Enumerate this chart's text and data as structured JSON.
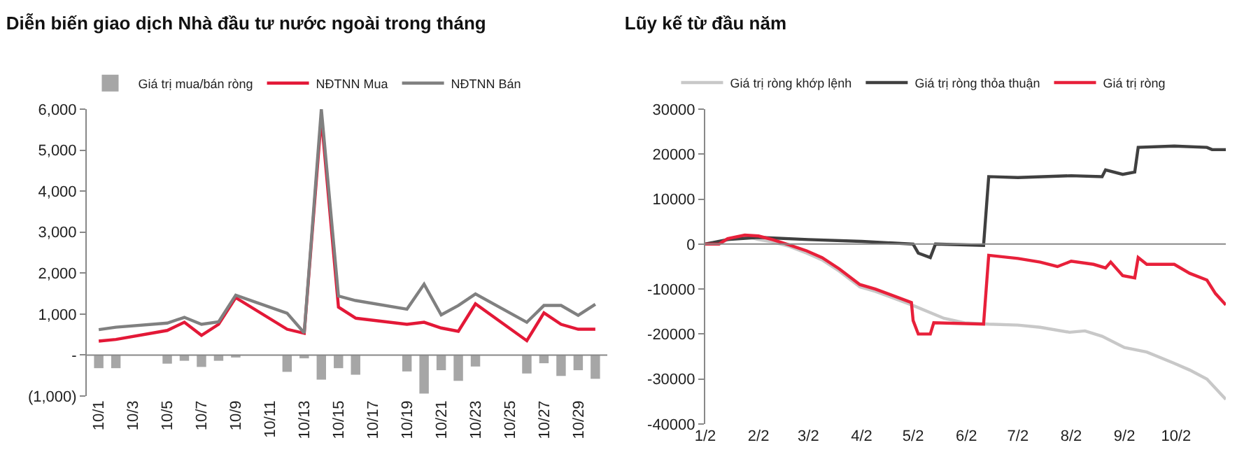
{
  "chart_data": [
    {
      "type": "line",
      "title": "Diễn biến giao dịch Nhà đầu tư nước ngoài trong tháng",
      "categories": [
        "10/1",
        null,
        "10/3",
        null,
        "10/5",
        null,
        "10/7",
        null,
        "10/9",
        null,
        "10/11",
        null,
        "10/13",
        null,
        "10/15",
        null,
        "10/17",
        null,
        "10/19",
        null,
        "10/21",
        null,
        "10/23",
        null,
        "10/25",
        null,
        "10/27",
        null,
        "10/29",
        null
      ],
      "series": [
        {
          "name": "Giá trị mua/bán ròng",
          "type": "bar",
          "color": "#a6a6a6",
          "values": [
            -320,
            -320,
            null,
            null,
            -210,
            -140,
            -290,
            -140,
            -60,
            null,
            null,
            -410,
            -80,
            -600,
            -320,
            -480,
            null,
            null,
            -400,
            -940,
            -370,
            -630,
            -280,
            null,
            null,
            -450,
            -200,
            -510,
            -370,
            -580
          ]
        },
        {
          "name": "NĐTNN Mua",
          "type": "line",
          "color": "#e31837",
          "values": [
            340,
            380,
            null,
            null,
            600,
            800,
            480,
            750,
            1400,
            null,
            null,
            630,
            530,
            5800,
            1170,
            900,
            null,
            null,
            750,
            800,
            660,
            580,
            1250,
            null,
            null,
            350,
            1030,
            750,
            630,
            630
          ]
        },
        {
          "name": "NĐTNN Bán",
          "type": "line",
          "color": "#808080",
          "values": [
            620,
            680,
            null,
            null,
            780,
            920,
            750,
            810,
            1460,
            null,
            null,
            1020,
            540,
            6000,
            1440,
            1330,
            null,
            null,
            1120,
            1730,
            980,
            1210,
            1490,
            null,
            null,
            800,
            1210,
            1210,
            970,
            1240
          ]
        }
      ],
      "ylim": [
        -1000,
        6000
      ],
      "yticks": [
        {
          "value": -1000,
          "label": "(1,000)"
        },
        {
          "value": 0,
          "label": "-"
        },
        {
          "value": 1000,
          "label": "1,000"
        },
        {
          "value": 2000,
          "label": "2,000"
        },
        {
          "value": 3000,
          "label": "3,000"
        },
        {
          "value": 4000,
          "label": "4,000"
        },
        {
          "value": 5000,
          "label": "5,000"
        },
        {
          "value": 6000,
          "label": "6,000"
        }
      ],
      "ref_lines": [
        {
          "axis": "y",
          "value": 0,
          "color": "#888888"
        }
      ],
      "grid": false,
      "legend": "top",
      "marker": "none",
      "line_style": "solid"
    },
    {
      "type": "line",
      "title": "Lũy kế từ đầu năm",
      "series": [
        {
          "name": "Giá trị ròng khớp lệnh",
          "color": "#c8c8c8",
          "x": [
            "--01-02",
            "--01-10",
            "--01-15",
            "--01-25",
            "--02-02",
            "--02-10",
            "--02-20",
            "--03-01",
            "--03-10",
            "--03-20",
            "--04-01",
            "--04-10",
            "--05-01",
            "--05-20",
            "--06-01",
            "--06-15",
            "--07-02",
            "--07-15",
            "--08-01",
            "--08-10",
            "--08-20",
            "--09-02",
            "--09-15",
            "--10-01",
            "--10-10",
            "--10-20",
            "--10-31"
          ],
          "values": [
            0,
            0,
            1000,
            1800,
            1000,
            500,
            -500,
            -2000,
            -3500,
            -6000,
            -9500,
            -10500,
            -13500,
            -16500,
            -17500,
            -17800,
            -18000,
            -18500,
            -19600,
            -19300,
            -20500,
            -23000,
            -24000,
            -26500,
            -28000,
            -30000,
            -34500
          ]
        },
        {
          "name": "Giá trị ròng thỏa thuận",
          "color": "#404040",
          "x": [
            "--01-02",
            "--01-15",
            "--02-02",
            "--03-02",
            "--04-02",
            "--05-02",
            "--05-05",
            "--05-12",
            "--05-15",
            "--06-12",
            "--06-15",
            "--07-02",
            "--08-02",
            "--08-20",
            "--08-22",
            "--09-01",
            "--09-08",
            "--09-10",
            "--10-01",
            "--10-20",
            "--10-23",
            "--10-31"
          ],
          "values": [
            0,
            1000,
            1500,
            1000,
            600,
            0,
            -2000,
            -3000,
            0,
            -300,
            15000,
            14800,
            15200,
            15000,
            16500,
            15500,
            16000,
            21500,
            21800,
            21500,
            21000,
            21000
          ]
        },
        {
          "name": "Giá trị ròng",
          "color": "#e8203a",
          "x": [
            "--01-02",
            "--01-10",
            "--01-15",
            "--01-25",
            "--02-02",
            "--02-10",
            "--02-20",
            "--03-01",
            "--03-10",
            "--03-20",
            "--04-01",
            "--04-10",
            "--05-01",
            "--05-02",
            "--05-05",
            "--05-12",
            "--05-14",
            "--06-12",
            "--06-15",
            "--07-02",
            "--07-15",
            "--07-25",
            "--08-02",
            "--08-15",
            "--08-22",
            "--08-25",
            "--09-01",
            "--09-08",
            "--09-10",
            "--09-15",
            "--10-01",
            "--10-10",
            "--10-20",
            "--10-25",
            "--10-31"
          ],
          "values": [
            0,
            0,
            1200,
            2000,
            1800,
            1000,
            -200,
            -1500,
            -3000,
            -5500,
            -9000,
            -10000,
            -13000,
            -17000,
            -20000,
            -20000,
            -17500,
            -17800,
            -2500,
            -3200,
            -4000,
            -5000,
            -3800,
            -4500,
            -5300,
            -4000,
            -7000,
            -7500,
            -3000,
            -4500,
            -4500,
            -6500,
            -8000,
            -11000,
            -13500
          ]
        }
      ],
      "xlim": [
        "--01-02",
        "--10-31"
      ],
      "xticks": [
        {
          "value": "--01-02",
          "label": "1/2"
        },
        {
          "value": "--02-02",
          "label": "2/2"
        },
        {
          "value": "--03-02",
          "label": "3/2"
        },
        {
          "value": "--04-02",
          "label": "4/2"
        },
        {
          "value": "--05-02",
          "label": "5/2"
        },
        {
          "value": "--06-02",
          "label": "6/2"
        },
        {
          "value": "--07-02",
          "label": "7/2"
        },
        {
          "value": "--08-02",
          "label": "8/2"
        },
        {
          "value": "--09-02",
          "label": "9/2"
        },
        {
          "value": "--10-02",
          "label": "10/2"
        }
      ],
      "ylim": [
        -40000,
        30000
      ],
      "yticks": [
        -40000,
        -30000,
        -20000,
        -10000,
        0,
        10000,
        20000,
        30000
      ],
      "ref_lines": [
        {
          "axis": "y",
          "value": 0,
          "color": "#888888"
        }
      ],
      "grid": false,
      "legend": "top",
      "marker": "none",
      "line_style": "solid"
    }
  ]
}
